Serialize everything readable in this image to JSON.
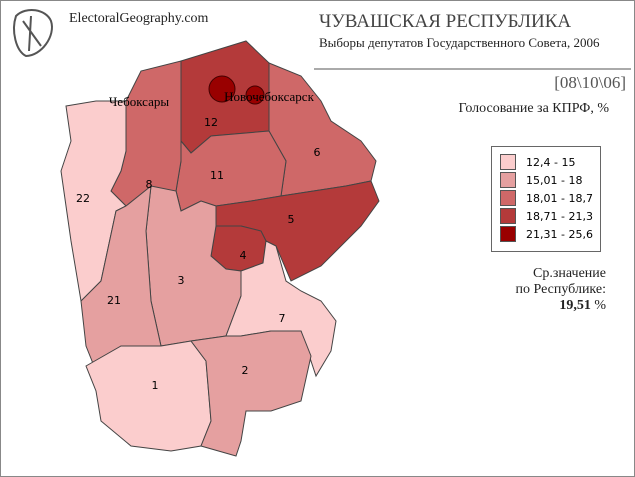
{
  "header": {
    "site": "ElectoralGeography.com",
    "title": "ЧУВАШСКАЯ РЕСПУБЛИКА",
    "subtitle": "Выборы депутатов Государственного Совета, 2006",
    "date": "[08\\10\\06]",
    "metric": "Голосование за КПРФ, %"
  },
  "legend": {
    "items": [
      {
        "label": "12,4 - 15",
        "color": "#fbcdcd"
      },
      {
        "label": "15,01 - 18",
        "color": "#e5a0a0"
      },
      {
        "label": "18,01 - 18,7",
        "color": "#cf6868"
      },
      {
        "label": "18,71 - 21,3",
        "color": "#b43a3a"
      },
      {
        "label": "21,31 - 25,6",
        "color": "#990000"
      }
    ]
  },
  "summary": {
    "line1": "Ср.значение",
    "line2": "по Республике:",
    "value": "19,51",
    "unit": "%"
  },
  "cities": [
    {
      "name": "Чебоксары",
      "color": "#990000"
    },
    {
      "name": "Новочебоксарск",
      "color": "#990000"
    }
  ],
  "regions": [
    {
      "label": "12",
      "color": "#b43a3a"
    },
    {
      "label": "6",
      "color": "#cf6868"
    },
    {
      "label": "11",
      "color": "#cf6868"
    },
    {
      "label": "8",
      "color": "#cf6868"
    },
    {
      "label": "22",
      "color": "#fbcdcd"
    },
    {
      "label": "5",
      "color": "#b43a3a"
    },
    {
      "label": "4",
      "color": "#b43a3a"
    },
    {
      "label": "3",
      "color": "#e5a0a0"
    },
    {
      "label": "21",
      "color": "#e5a0a0"
    },
    {
      "label": "7",
      "color": "#fbcdcd"
    },
    {
      "label": "1",
      "color": "#fbcdcd"
    },
    {
      "label": "2",
      "color": "#e5a0a0"
    }
  ]
}
